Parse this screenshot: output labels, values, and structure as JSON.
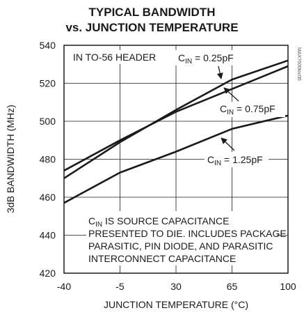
{
  "title_line1": "TYPICAL BANDWIDTH",
  "title_line2": "vs. JUNCTION TEMPERATURE",
  "figure_code": "MAX7600toc06",
  "chart_data": {
    "type": "line",
    "title": "TYPICAL BANDWIDTH vs. JUNCTION TEMPERATURE",
    "xlabel": "JUNCTION TEMPERATURE (°C)",
    "ylabel": "3dB BANDWIDTH (MHz)",
    "xlim": [
      -40,
      100
    ],
    "ylim": [
      420,
      540
    ],
    "x_ticks": [
      -40,
      -5,
      30,
      65,
      100
    ],
    "y_ticks": [
      420,
      440,
      460,
      480,
      500,
      520,
      540
    ],
    "x_tick_labels": [
      "-40",
      "-5",
      "30",
      "65",
      "100"
    ],
    "y_tick_labels": [
      "420",
      "440",
      "460",
      "480",
      "500",
      "520",
      "540"
    ],
    "grid": true,
    "legend": "none (curves labeled inline)",
    "series": [
      {
        "label_main": "C",
        "label_sub": "IN",
        "label_rest": " = 0.25pF",
        "x": [
          -40,
          -5,
          30,
          65,
          100
        ],
        "y": [
          470,
          489,
          506,
          522,
          532
        ]
      },
      {
        "label_main": "C",
        "label_sub": "IN",
        "label_rest": " = 0.75pF",
        "x": [
          -40,
          -5,
          30,
          65,
          100
        ],
        "y": [
          474,
          490,
          505,
          517,
          529
        ]
      },
      {
        "label_main": "C",
        "label_sub": "IN",
        "label_rest": " = 1.25pF",
        "x": [
          -40,
          -5,
          30,
          65,
          100
        ],
        "y": [
          457,
          473,
          484,
          496,
          503
        ]
      }
    ],
    "annotations": {
      "header": "IN TO-56 HEADER",
      "note_line1_main": "C",
      "note_line1_sub": "IN",
      "note_line1_rest": " IS SOURCE CAPACITANCE",
      "note_line2": "PRESENTED TO DIE. INCLUDES PACKAGE",
      "note_line3": "PARASITIC, PIN DIODE, AND PARASITIC",
      "note_line4": "INTERCONNECT CAPACITANCE"
    }
  }
}
